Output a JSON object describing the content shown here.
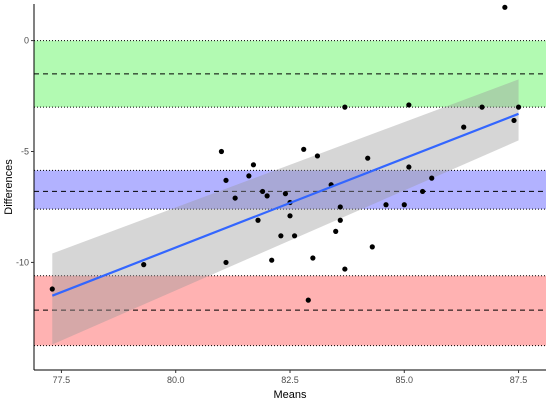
{
  "chart_data": {
    "type": "scatter",
    "title": "",
    "xlabel": "Means",
    "ylabel": "Differences",
    "xlim": [
      76.9,
      88.1
    ],
    "ylim": [
      -14.85,
      1.65
    ],
    "x_ticks": [
      77.5,
      80.0,
      82.5,
      85.0,
      87.5
    ],
    "y_ticks": [
      0,
      -5,
      -10
    ],
    "grid": false,
    "bands": [
      {
        "name": "upper",
        "lower": -3.0,
        "upper": 0.0,
        "center": -1.5,
        "color": "#00ee00"
      },
      {
        "name": "mean",
        "lower": -7.6,
        "upper": -5.85,
        "center": -6.8,
        "color": "#0000ff"
      },
      {
        "name": "lower",
        "lower": -13.75,
        "upper": -10.6,
        "center": -12.15,
        "color": "#ff0000"
      }
    ],
    "points": [
      [
        77.3,
        -11.2
      ],
      [
        79.3,
        -10.1
      ],
      [
        81.0,
        -5.0
      ],
      [
        81.1,
        -6.3
      ],
      [
        81.1,
        -10.0
      ],
      [
        81.3,
        -7.1
      ],
      [
        81.6,
        -6.1
      ],
      [
        81.7,
        -5.6
      ],
      [
        81.8,
        -8.1
      ],
      [
        81.9,
        -6.8
      ],
      [
        82.0,
        -7.0
      ],
      [
        82.1,
        -9.9
      ],
      [
        82.3,
        -8.8
      ],
      [
        82.4,
        -6.9
      ],
      [
        82.5,
        -7.3
      ],
      [
        82.5,
        -7.9
      ],
      [
        82.6,
        -8.8
      ],
      [
        82.8,
        -4.9
      ],
      [
        82.9,
        -11.7
      ],
      [
        83.0,
        -9.8
      ],
      [
        83.1,
        -5.2
      ],
      [
        83.4,
        -6.5
      ],
      [
        83.5,
        -8.6
      ],
      [
        83.6,
        -8.1
      ],
      [
        83.6,
        -7.5
      ],
      [
        83.7,
        -10.3
      ],
      [
        83.7,
        -3.0
      ],
      [
        84.2,
        -5.3
      ],
      [
        84.3,
        -9.3
      ],
      [
        84.6,
        -7.4
      ],
      [
        85.0,
        -7.4
      ],
      [
        85.1,
        -2.9
      ],
      [
        85.1,
        -5.7
      ],
      [
        85.4,
        -6.8
      ],
      [
        85.6,
        -6.2
      ],
      [
        86.3,
        -3.9
      ],
      [
        86.7,
        -3.0
      ],
      [
        87.2,
        1.5
      ],
      [
        87.4,
        -3.6
      ],
      [
        87.5,
        -3.0
      ]
    ],
    "fit": {
      "x": [
        77.3,
        87.5
      ],
      "y": [
        -11.5,
        -3.3
      ],
      "ci_lower": [
        -13.7,
        -4.5
      ],
      "ci_upper": [
        -9.6,
        -1.75
      ],
      "line_color": "#3366ff",
      "ci_color": "#999999"
    }
  }
}
